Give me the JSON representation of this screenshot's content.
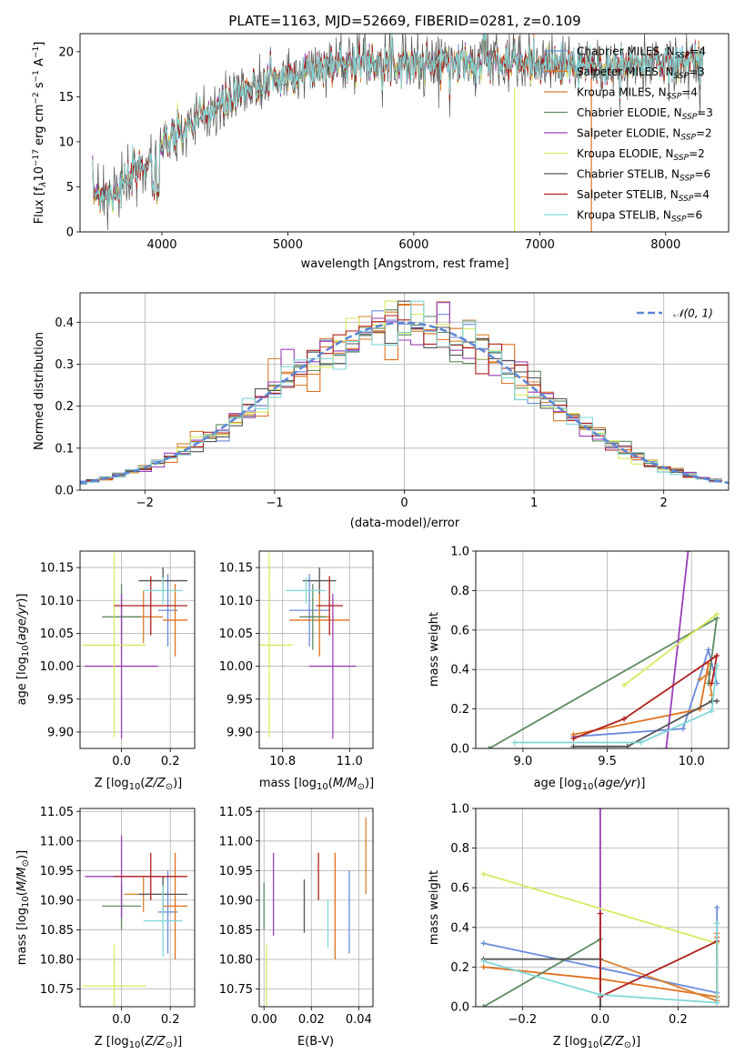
{
  "figure": {
    "title": "PLATE=1163, MJD=52669, FIBERID=0281, z=0.109",
    "labels": {
      "spec_x": "wavelength [Angstrom, rest frame]",
      "res_x": "(data-model)/error",
      "res_y": "Normed distribution",
      "res_legend": "𝒩(0, 1)",
      "age_y": "age  [log",
      "ebv_x": "E(B-V)",
      "weight_y": "mass weight"
    }
  },
  "series": [
    {
      "name": "Chabrier MILES",
      "nssp": 4,
      "color": "#6a8bdc"
    },
    {
      "name": "Salpeter MILES",
      "nssp": 3,
      "color": "#e0701e"
    },
    {
      "name": "Kroupa MILES",
      "nssp": 4,
      "color": "#d88030"
    },
    {
      "name": "Chabrier ELODIE",
      "nssp": 3,
      "color": "#5e8a62"
    },
    {
      "name": "Salpeter ELODIE",
      "nssp": 2,
      "color": "#9b3fb8"
    },
    {
      "name": "Kroupa ELODIE",
      "nssp": 2,
      "color": "#d8ea60"
    },
    {
      "name": "Chabrier STELIB",
      "nssp": 6,
      "color": "#555555"
    },
    {
      "name": "Salpeter STELIB",
      "nssp": 4,
      "color": "#b01e1e"
    },
    {
      "name": "Kroupa STELIB",
      "nssp": 6,
      "color": "#80d6d6"
    }
  ],
  "chart_data": [
    {
      "type": "line",
      "title": "PLATE=1163, MJD=52669, FIBERID=0281, z=0.109",
      "xlabel": "wavelength [Angstrom, rest frame]",
      "ylabel": "Flux [f_λ 10^-17 erg cm^-2 s^-1 A^-1]",
      "xlim": [
        3350,
        8500
      ],
      "ylim": [
        0,
        22
      ],
      "xticks": [
        4000,
        5000,
        6000,
        7000,
        8000
      ],
      "yticks": [
        0,
        5,
        10,
        15,
        20
      ],
      "spectrum_anchors": {
        "x": [
          3450,
          3600,
          3800,
          4000,
          4200,
          4400,
          4600,
          4800,
          5000,
          5200,
          5400,
          5600,
          5800,
          6000,
          6200,
          6500,
          7000,
          7500,
          8000,
          8300
        ],
        "y": [
          4.5,
          4.2,
          6.5,
          9.5,
          11.5,
          13.5,
          15.0,
          16.5,
          17.5,
          18.0,
          18.7,
          19.0,
          18.9,
          18.6,
          18.7,
          19.0,
          18.6,
          18.3,
          18.8,
          19.2
        ]
      },
      "legend": "upper right"
    },
    {
      "type": "line",
      "xlabel": "(data-model)/error",
      "ylabel": "Normed distribution",
      "xlim": [
        -2.5,
        2.5
      ],
      "ylim": [
        0,
        0.47
      ],
      "xticks": [
        -2,
        -1,
        0,
        1,
        2
      ],
      "yticks": [
        0.0,
        0.1,
        0.2,
        0.3,
        0.4
      ],
      "reference_curve": "N(0,1)",
      "grid": true,
      "legend": "upper right"
    },
    {
      "type": "scatter",
      "xlabel": "Z [log10(Z/Z_sun)]",
      "ylabel": "age [log10(age/yr)]",
      "xlim": [
        -0.17,
        0.3
      ],
      "ylim": [
        9.875,
        10.175
      ],
      "xticks": [
        0.0,
        0.2
      ],
      "yticks": [
        9.9,
        9.95,
        10.0,
        10.05,
        10.1,
        10.15
      ],
      "points": [
        {
          "x": 0.19,
          "y": 10.085,
          "xerr": 0.04,
          "yerr": 0.055
        },
        {
          "x": 0.22,
          "y": 10.07,
          "xerr": 0.05,
          "yerr": 0.055
        },
        {
          "x": 0.09,
          "y": 10.075,
          "xerr": 0.08,
          "yerr": 0.04
        },
        {
          "x": 0.0,
          "y": 10.075,
          "xerr": 0.08,
          "yerr": 0.05
        },
        {
          "x": 0.0,
          "y": 10.0,
          "xerr": 0.15,
          "yerr": 0.11
        },
        {
          "x": -0.03,
          "y": 10.032,
          "xerr": 0.13,
          "yerr": 0.14
        },
        {
          "x": 0.17,
          "y": 10.13,
          "xerr": 0.1,
          "yerr": 0.02
        },
        {
          "x": 0.12,
          "y": 10.092,
          "xerr": 0.15,
          "yerr": 0.045
        },
        {
          "x": 0.17,
          "y": 10.115,
          "xerr": 0.08,
          "yerr": 0.02
        }
      ]
    },
    {
      "type": "scatter",
      "xlabel": "mass [log10(M/M_sun)]",
      "ylabel": "",
      "xlim": [
        10.73,
        11.07
      ],
      "ylim": [
        9.875,
        10.175
      ],
      "xticks": [
        10.8,
        11.0
      ],
      "yticks": [
        9.9,
        9.95,
        10.0,
        10.05,
        10.1,
        10.15
      ],
      "points": [
        {
          "x": 10.88,
          "y": 10.085,
          "xerr": 0.06,
          "yerr": 0.055
        },
        {
          "x": 10.91,
          "y": 10.07,
          "xerr": 0.09,
          "yerr": 0.055
        },
        {
          "x": 10.91,
          "y": 10.075,
          "xerr": 0.03,
          "yerr": 0.04
        },
        {
          "x": 10.89,
          "y": 10.075,
          "xerr": 0.04,
          "yerr": 0.05
        },
        {
          "x": 10.95,
          "y": 10.0,
          "xerr": 0.07,
          "yerr": 0.11
        },
        {
          "x": 10.76,
          "y": 10.032,
          "xerr": 0.07,
          "yerr": 0.14
        },
        {
          "x": 10.91,
          "y": 10.13,
          "xerr": 0.05,
          "yerr": 0.02
        },
        {
          "x": 10.94,
          "y": 10.092,
          "xerr": 0.04,
          "yerr": 0.045
        },
        {
          "x": 10.87,
          "y": 10.115,
          "xerr": 0.06,
          "yerr": 0.02
        }
      ]
    },
    {
      "type": "line",
      "xlabel": "age [log10(age/yr)]",
      "ylabel": "mass weight",
      "xlim": [
        8.72,
        10.22
      ],
      "ylim": [
        0,
        1
      ],
      "xticks": [
        9.0,
        9.5,
        10.0
      ],
      "yticks": [
        0.0,
        0.2,
        0.4,
        0.6,
        0.8,
        1.0
      ],
      "series": [
        {
          "name": "Chabrier MILES",
          "x": [
            9.3,
            9.95,
            10.1,
            10.15
          ],
          "y": [
            0.06,
            0.1,
            0.5,
            0.33
          ]
        },
        {
          "name": "Salpeter MILES",
          "x": [
            9.3,
            10.05,
            10.1
          ],
          "y": [
            0.07,
            0.2,
            0.43
          ]
        },
        {
          "name": "Kroupa MILES",
          "x": [
            10.05,
            10.1,
            10.12
          ],
          "y": [
            0.35,
            0.38,
            0.27
          ]
        },
        {
          "name": "Chabrier ELODIE",
          "x": [
            8.8,
            10.15,
            10.1
          ],
          "y": [
            0.0,
            0.66,
            0.33
          ]
        },
        {
          "name": "Salpeter ELODIE",
          "x": [
            9.85,
            9.98
          ],
          "y": [
            0.0,
            1.0
          ]
        },
        {
          "name": "Kroupa ELODIE",
          "x": [
            9.6,
            10.15
          ],
          "y": [
            0.32,
            0.68
          ]
        },
        {
          "name": "Chabrier STELIB",
          "x": [
            9.3,
            9.62,
            10.12,
            10.15
          ],
          "y": [
            0.01,
            0.01,
            0.24,
            0.24
          ]
        },
        {
          "name": "Salpeter STELIB",
          "x": [
            9.3,
            9.6,
            10.15,
            10.12
          ],
          "y": [
            0.05,
            0.15,
            0.47,
            0.33
          ]
        },
        {
          "name": "Kroupa STELIB",
          "x": [
            8.95,
            9.7,
            10.12,
            10.15
          ],
          "y": [
            0.03,
            0.03,
            0.19,
            0.42
          ]
        }
      ]
    },
    {
      "type": "scatter",
      "xlabel": "Z [log10(Z/Z_sun)]",
      "ylabel": "mass [log10(M/M_sun)]",
      "xlim": [
        -0.17,
        0.3
      ],
      "ylim": [
        10.72,
        11.055
      ],
      "xticks": [
        0.0,
        0.2
      ],
      "yticks": [
        10.75,
        10.8,
        10.85,
        10.9,
        10.95,
        11.0,
        11.05
      ],
      "points": [
        {
          "x": 0.19,
          "y": 10.88,
          "xerr": 0.04,
          "yerr": 0.07
        },
        {
          "x": 0.22,
          "y": 10.89,
          "xerr": 0.05,
          "yerr": 0.09
        },
        {
          "x": 0.09,
          "y": 10.91,
          "xerr": 0.08,
          "yerr": 0.03
        },
        {
          "x": 0.0,
          "y": 10.89,
          "xerr": 0.08,
          "yerr": 0.04
        },
        {
          "x": 0.0,
          "y": 10.94,
          "xerr": 0.15,
          "yerr": 0.07
        },
        {
          "x": -0.03,
          "y": 10.755,
          "xerr": 0.13,
          "yerr": 0.07
        },
        {
          "x": 0.17,
          "y": 10.91,
          "xerr": 0.1,
          "yerr": 0.03
        },
        {
          "x": 0.12,
          "y": 10.94,
          "xerr": 0.15,
          "yerr": 0.04
        },
        {
          "x": 0.17,
          "y": 10.865,
          "xerr": 0.08,
          "yerr": 0.06
        }
      ]
    },
    {
      "type": "scatter",
      "xlabel": "E(B-V)",
      "ylabel": "",
      "xlim": [
        -0.002,
        0.046
      ],
      "ylim": [
        10.72,
        11.055
      ],
      "xticks": [
        0.0,
        0.02,
        0.04
      ],
      "yticks": [
        10.75,
        10.8,
        10.85,
        10.9,
        10.95,
        11.0,
        11.05
      ],
      "points": [
        {
          "x": 0.036,
          "y": 10.88,
          "yerr": 0.07
        },
        {
          "x": 0.03,
          "y": 10.89,
          "yerr": 0.09
        },
        {
          "x": 0.043,
          "y": 10.975,
          "yerr": 0.065
        },
        {
          "x": 0.0,
          "y": 10.89,
          "yerr": 0.04
        },
        {
          "x": 0.004,
          "y": 10.91,
          "yerr": 0.07
        },
        {
          "x": 0.001,
          "y": 10.755,
          "yerr": 0.07
        },
        {
          "x": 0.017,
          "y": 10.89,
          "yerr": 0.045
        },
        {
          "x": 0.023,
          "y": 10.94,
          "yerr": 0.04
        },
        {
          "x": 0.027,
          "y": 10.86,
          "yerr": 0.04
        }
      ]
    },
    {
      "type": "line",
      "xlabel": "Z [log10(Z/Z_sun)]",
      "ylabel": "mass weight",
      "xlim": [
        -0.32,
        0.33
      ],
      "ylim": [
        0,
        1
      ],
      "xticks": [
        -0.2,
        0.0,
        0.2
      ],
      "yticks": [
        0.0,
        0.2,
        0.4,
        0.6,
        0.8,
        1.0
      ],
      "series": [
        {
          "name": "Chabrier MILES",
          "x": [
            -0.3,
            0.3,
            0.3
          ],
          "y": [
            0.32,
            0.07,
            0.5
          ]
        },
        {
          "name": "Salpeter MILES",
          "x": [
            -0.3,
            0.0,
            0.3,
            0.3
          ],
          "y": [
            0.2,
            0.14,
            0.05,
            0.35
          ]
        },
        {
          "name": "Kroupa MILES",
          "x": [
            0.0,
            0.3,
            0.3
          ],
          "y": [
            0.24,
            0.03,
            0.37
          ]
        },
        {
          "name": "Chabrier ELODIE",
          "x": [
            -0.3,
            0.0,
            0.0
          ],
          "y": [
            0.0,
            0.34,
            0.0
          ]
        },
        {
          "name": "Salpeter ELODIE",
          "x": [
            0.0,
            0.0
          ],
          "y": [
            0.0,
            1.0
          ]
        },
        {
          "name": "Kroupa ELODIE",
          "x": [
            -0.3,
            0.3
          ],
          "y": [
            0.67,
            0.32
          ]
        },
        {
          "name": "Chabrier STELIB",
          "x": [
            -0.3,
            0.0,
            0.0
          ],
          "y": [
            0.24,
            0.24,
            0.0
          ]
        },
        {
          "name": "Salpeter STELIB",
          "x": [
            0.0,
            0.0,
            0.3
          ],
          "y": [
            0.47,
            0.05,
            0.33
          ]
        },
        {
          "name": "Kroupa STELIB",
          "x": [
            -0.3,
            0.0,
            0.3,
            0.3
          ],
          "y": [
            0.23,
            0.06,
            0.02,
            0.42
          ]
        }
      ]
    }
  ]
}
